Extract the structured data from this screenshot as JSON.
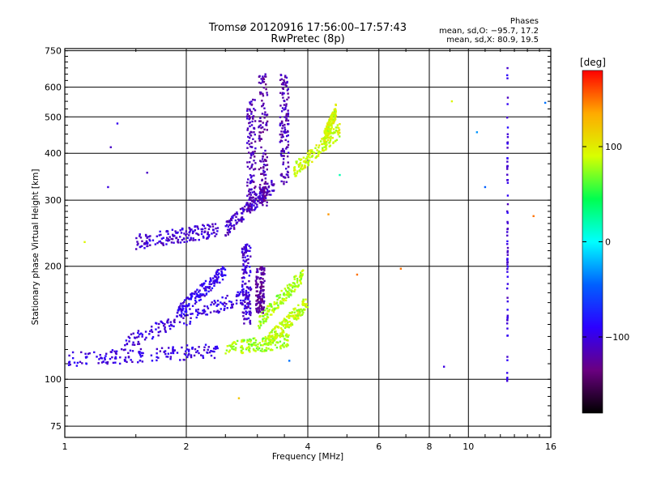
{
  "header": {
    "title_line1": "Tromsø 20120916 17:56:00–17:57:43",
    "title_line2": "RwPretec (8p)"
  },
  "stats": {
    "title": "Phases",
    "line_o": "mean, sd,O: −95.7, 17.2",
    "line_x": "mean, sd,X:  80.9, 19.5"
  },
  "colorbar": {
    "title": "[deg]",
    "ticks": [
      "100",
      "0",
      "−100"
    ],
    "tick_values": [
      100,
      0,
      -100
    ],
    "range": [
      -180,
      180
    ],
    "colors": [
      "#000000",
      "#6a0080",
      "#2c00ff",
      "#0060ff",
      "#00ffff",
      "#00ff50",
      "#d8ff00",
      "#ffaa00",
      "#ff0000"
    ]
  },
  "chart_data": {
    "type": "scatter",
    "title": "Tromsø 20120916 17:56:00–17:57:43",
    "subtitle": "RwPretec (8p)",
    "xlabel": "Frequency [MHz]",
    "ylabel": "Stationary phase Virtual Height [km]",
    "xscale": "log",
    "yscale": "log",
    "xlim": [
      1,
      16
    ],
    "ylim": [
      70,
      760
    ],
    "grid": true,
    "x_ticks": [
      1,
      2,
      4,
      6,
      8,
      10,
      16
    ],
    "x_tick_labels": [
      "1",
      "2",
      "4",
      "6",
      "8",
      "10",
      "16"
    ],
    "y_ticks": [
      75,
      100,
      200,
      300,
      400,
      500,
      600,
      750
    ],
    "y_tick_labels": [
      "75",
      "100",
      "200",
      "300",
      "400",
      "500",
      "600",
      "750"
    ],
    "color_variable": "phase [deg]",
    "traces": [
      {
        "x_start": 1.02,
        "x_end": 2.4,
        "y_start": 113,
        "y_end": 119,
        "phase": -100
      },
      {
        "x_start": 1.4,
        "x_end": 2.9,
        "y_start": 125,
        "y_end": 170,
        "phase": -100
      },
      {
        "x_start": 1.9,
        "x_end": 2.5,
        "y_start": 150,
        "y_end": 195,
        "phase": -95
      },
      {
        "x_start": 1.5,
        "x_end": 2.4,
        "y_start": 232,
        "y_end": 250,
        "phase": -105
      },
      {
        "x_start": 2.5,
        "x_end": 3.3,
        "y_start": 250,
        "y_end": 330,
        "phase": -110
      },
      {
        "x_start": 2.5,
        "x_end": 3.6,
        "y_start": 120,
        "y_end": 127,
        "phase": 80
      },
      {
        "x_start": 3.2,
        "x_end": 4.0,
        "y_start": 127,
        "y_end": 160,
        "phase": 85
      },
      {
        "x_start": 3.0,
        "x_end": 3.9,
        "y_start": 140,
        "y_end": 190,
        "phase": 80
      },
      {
        "x_start": 3.7,
        "x_end": 4.8,
        "y_start": 360,
        "y_end": 460,
        "phase": 90
      },
      {
        "x_start": 4.4,
        "x_end": 4.7,
        "y_start": 440,
        "y_end": 520,
        "phase": 92
      }
    ],
    "columns": [
      {
        "x": 2.9,
        "y_min": 280,
        "y_max": 560,
        "phase": -115
      },
      {
        "x": 3.1,
        "y_min": 290,
        "y_max": 650,
        "phase": -120
      },
      {
        "x": 3.5,
        "y_min": 330,
        "y_max": 650,
        "phase": -115
      },
      {
        "x": 2.82,
        "y_min": 140,
        "y_max": 230,
        "phase": -105
      },
      {
        "x": 3.05,
        "y_min": 150,
        "y_max": 200,
        "phase": -125
      },
      {
        "x": 12.5,
        "y_min": 97,
        "y_max": 680,
        "phase": -100
      }
    ],
    "isolated_points": [
      {
        "x": 1.35,
        "y": 480,
        "phase": -95
      },
      {
        "x": 1.3,
        "y": 415,
        "phase": -110
      },
      {
        "x": 1.28,
        "y": 325,
        "phase": -100
      },
      {
        "x": 1.12,
        "y": 232,
        "phase": 95
      },
      {
        "x": 1.6,
        "y": 355,
        "phase": -110
      },
      {
        "x": 2.7,
        "y": 89,
        "phase": 120
      },
      {
        "x": 4.5,
        "y": 275,
        "phase": 140
      },
      {
        "x": 5.3,
        "y": 190,
        "phase": 150
      },
      {
        "x": 6.8,
        "y": 197,
        "phase": 150
      },
      {
        "x": 8.7,
        "y": 108,
        "phase": -100
      },
      {
        "x": 9.1,
        "y": 550,
        "phase": 95
      },
      {
        "x": 10.5,
        "y": 455,
        "phase": -30
      },
      {
        "x": 11.0,
        "y": 325,
        "phase": -45
      },
      {
        "x": 14.5,
        "y": 272,
        "phase": 150
      },
      {
        "x": 15.5,
        "y": 545,
        "phase": -40
      },
      {
        "x": 3.6,
        "y": 112,
        "phase": -40
      },
      {
        "x": 4.8,
        "y": 350,
        "phase": 20
      }
    ]
  }
}
